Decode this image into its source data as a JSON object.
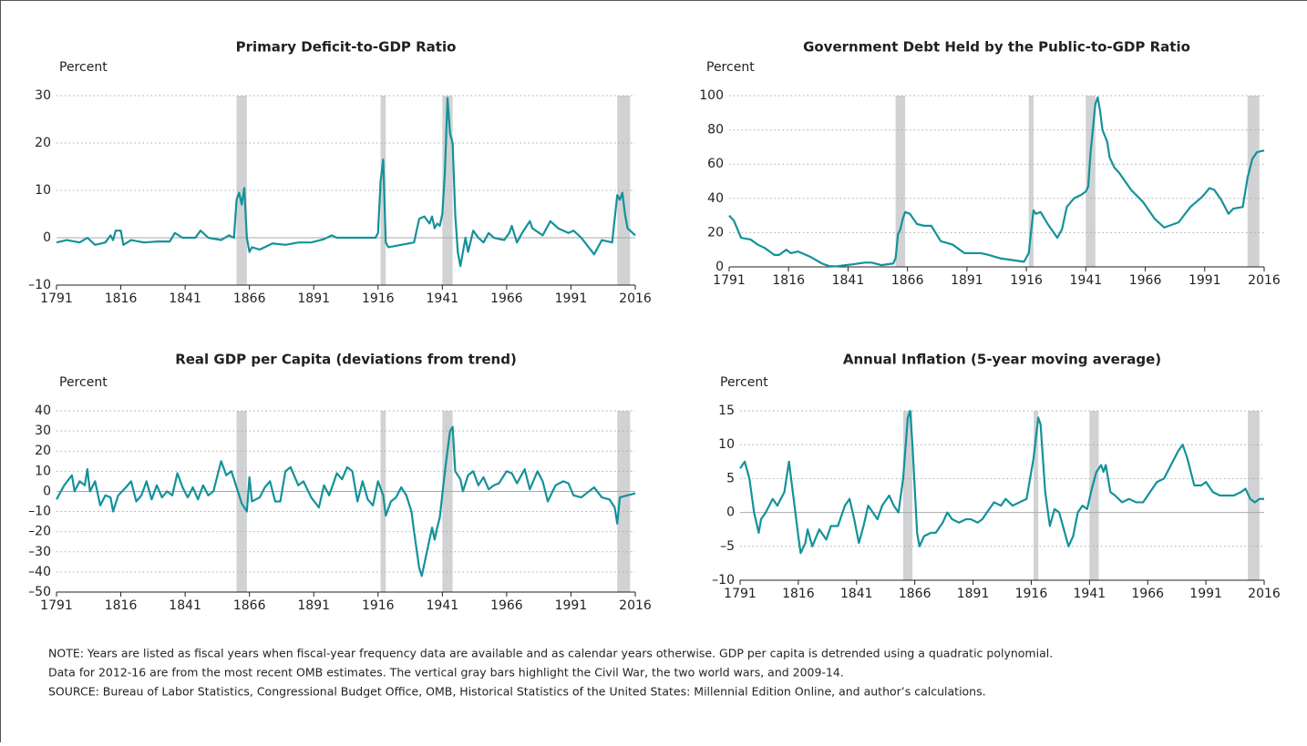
{
  "chart_data": [
    {
      "type": "line",
      "title": "Primary Deficit-to-GDP Ratio",
      "y_label": "Percent",
      "x": [
        1791,
        1795,
        1800,
        1803,
        1806,
        1810,
        1812,
        1813,
        1814,
        1816,
        1817,
        1820,
        1825,
        1830,
        1835,
        1837,
        1840,
        1845,
        1847,
        1850,
        1855,
        1858,
        1860,
        1861,
        1862,
        1863,
        1864,
        1865,
        1866,
        1867,
        1870,
        1875,
        1880,
        1885,
        1890,
        1895,
        1898,
        1900,
        1905,
        1910,
        1915,
        1916,
        1917,
        1918,
        1919,
        1920,
        1925,
        1930,
        1932,
        1934,
        1936,
        1937,
        1938,
        1939,
        1940,
        1941,
        1942,
        1943,
        1944,
        1945,
        1946,
        1947,
        1948,
        1950,
        1951,
        1953,
        1955,
        1957,
        1959,
        1961,
        1965,
        1967,
        1968,
        1970,
        1972,
        1975,
        1976,
        1980,
        1983,
        1986,
        1990,
        1992,
        1995,
        2000,
        2003,
        2007,
        2009,
        2010,
        2011,
        2012,
        2013,
        2015,
        2016
      ],
      "values": [
        -1,
        -0.5,
        -1,
        0,
        -1.5,
        -1,
        0.5,
        -0.5,
        1.5,
        1.5,
        -1.5,
        -0.5,
        -1,
        -0.8,
        -0.8,
        1,
        0,
        0,
        1.5,
        0,
        -0.5,
        0.5,
        0,
        8,
        9.5,
        7,
        10.5,
        0,
        -3,
        -2,
        -2.5,
        -1.2,
        -1.5,
        -1,
        -1,
        -0.3,
        0.5,
        0,
        0,
        0,
        0,
        1,
        12,
        16.5,
        -1,
        -2,
        -1.5,
        -1,
        4,
        4.5,
        3,
        4.5,
        2,
        3,
        2.5,
        5,
        14,
        29.5,
        22,
        20,
        5,
        -3,
        -6,
        0,
        -3,
        1.5,
        0,
        -1,
        1,
        0,
        -0.5,
        1,
        2.5,
        -1,
        1,
        3.5,
        2,
        0.5,
        3.5,
        2,
        1,
        1.5,
        0,
        -3.5,
        -0.5,
        -1,
        9,
        8,
        9.5,
        5,
        2,
        1,
        0.5
      ],
      "color": "#13929a",
      "shaded_ranges": [
        [
          1861,
          1865
        ],
        [
          1917,
          1919
        ],
        [
          1941,
          1945
        ],
        [
          2009,
          2014
        ]
      ],
      "xlim": [
        1791,
        2016
      ],
      "xticks": [
        1791,
        1816,
        1841,
        1866,
        1891,
        1916,
        1941,
        1966,
        1991,
        2016
      ],
      "ylim": [
        -10,
        30
      ],
      "yticks": [
        {
          "value": -10,
          "label": "–10"
        },
        0,
        10,
        20,
        30
      ],
      "grid": true
    },
    {
      "type": "line",
      "title": "Government Debt Held by the Public-to-GDP Ratio",
      "y_label": "Percent",
      "x": [
        1791,
        1793,
        1796,
        1800,
        1803,
        1806,
        1810,
        1812,
        1815,
        1817,
        1820,
        1825,
        1830,
        1833,
        1836,
        1840,
        1843,
        1848,
        1851,
        1855,
        1860,
        1861,
        1862,
        1863,
        1864,
        1865,
        1867,
        1870,
        1873,
        1876,
        1880,
        1885,
        1890,
        1894,
        1897,
        1900,
        1905,
        1910,
        1915,
        1917,
        1918,
        1919,
        1920,
        1922,
        1925,
        1929,
        1931,
        1933,
        1936,
        1939,
        1941,
        1942,
        1943,
        1945,
        1946,
        1947,
        1948,
        1950,
        1951,
        1953,
        1955,
        1960,
        1965,
        1970,
        1974,
        1980,
        1985,
        1990,
        1993,
        1995,
        1998,
        2001,
        2003,
        2007,
        2009,
        2011,
        2013,
        2016
      ],
      "values": [
        30,
        27,
        17,
        16,
        13,
        11,
        7,
        7,
        10,
        8,
        9,
        6,
        2,
        0.5,
        0.3,
        1,
        1.5,
        2.5,
        2.5,
        1,
        2,
        5,
        19,
        22,
        28,
        32,
        31,
        25,
        24,
        24,
        15,
        13,
        8,
        8,
        8,
        7,
        5,
        4,
        3,
        8,
        21,
        33,
        31,
        32,
        25,
        17,
        22,
        35,
        40,
        42,
        44,
        47,
        67,
        95,
        99,
        91,
        80,
        73,
        64,
        58,
        55,
        45,
        38,
        28,
        23,
        26,
        35,
        41,
        46,
        45,
        39,
        31,
        34,
        35,
        52,
        63,
        67,
        68
      ],
      "color": "#13929a",
      "shaded_ranges": [
        [
          1861,
          1865
        ],
        [
          1917,
          1919
        ],
        [
          1941,
          1945
        ],
        [
          2009,
          2014
        ]
      ],
      "xlim": [
        1791,
        2016
      ],
      "xticks": [
        1791,
        1816,
        1841,
        1866,
        1891,
        1916,
        1941,
        1966,
        1991,
        2016
      ],
      "ylim": [
        0,
        100
      ],
      "yticks": [
        0,
        20,
        40,
        60,
        80,
        100
      ],
      "grid": true
    },
    {
      "type": "line",
      "title": "Real GDP per Capita (deviations from trend)",
      "y_label": "Percent",
      "x": [
        1791,
        1794,
        1797,
        1798,
        1800,
        1802,
        1803,
        1804,
        1806,
        1808,
        1810,
        1812,
        1813,
        1815,
        1818,
        1820,
        1822,
        1824,
        1826,
        1828,
        1830,
        1832,
        1834,
        1836,
        1838,
        1840,
        1842,
        1844,
        1846,
        1848,
        1850,
        1852,
        1853,
        1855,
        1857,
        1859,
        1861,
        1863,
        1865,
        1866,
        1867,
        1870,
        1872,
        1874,
        1876,
        1878,
        1880,
        1882,
        1885,
        1887,
        1890,
        1893,
        1895,
        1897,
        1900,
        1902,
        1904,
        1906,
        1908,
        1910,
        1912,
        1914,
        1916,
        1918,
        1919,
        1921,
        1923,
        1925,
        1927,
        1929,
        1930,
        1932,
        1933,
        1935,
        1937,
        1938,
        1939,
        1940,
        1942,
        1944,
        1945,
        1946,
        1948,
        1949,
        1951,
        1953,
        1955,
        1957,
        1959,
        1961,
        1963,
        1966,
        1968,
        1970,
        1973,
        1975,
        1978,
        1980,
        1982,
        1985,
        1988,
        1990,
        1992,
        1995,
        1998,
        2000,
        2003,
        2006,
        2008,
        2009,
        2010,
        2013,
        2016
      ],
      "values": [
        -4,
        3,
        8,
        0,
        5,
        3,
        11,
        0,
        5,
        -7,
        -2,
        -3,
        -10,
        -2,
        2,
        5,
        -5,
        -2,
        5,
        -4,
        3,
        -3,
        0,
        -2,
        9,
        2,
        -3,
        2,
        -4,
        3,
        -2,
        0,
        5,
        15,
        8,
        10,
        2,
        -6,
        -10,
        7,
        -5,
        -3,
        2,
        5,
        -5,
        -5,
        10,
        12,
        3,
        5,
        -3,
        -8,
        3,
        -2,
        9,
        6,
        12,
        10,
        -5,
        5,
        -4,
        -7,
        5,
        -2,
        -12,
        -5,
        -3,
        2,
        -2,
        -10,
        -20,
        -38,
        -42,
        -30,
        -18,
        -24,
        -18,
        -13,
        10,
        30,
        32,
        10,
        6,
        0,
        8,
        10,
        3,
        7,
        1,
        3,
        4,
        10,
        9,
        4,
        11,
        1,
        10,
        5,
        -5,
        3,
        5,
        4,
        -2,
        -3,
        0,
        2,
        -3,
        -4,
        -8,
        -16,
        -3,
        -2,
        -1
      ],
      "color": "#13929a",
      "shaded_ranges": [
        [
          1861,
          1865
        ],
        [
          1917,
          1919
        ],
        [
          1941,
          1945
        ],
        [
          2009,
          2014
        ]
      ],
      "xlim": [
        1791,
        2016
      ],
      "xticks": [
        1791,
        1816,
        1841,
        1866,
        1891,
        1916,
        1941,
        1966,
        1991,
        2016
      ],
      "ylim": [
        -50,
        40
      ],
      "yticks": [
        {
          "value": -50,
          "label": "–50"
        },
        {
          "value": -40,
          "label": "–40"
        },
        {
          "value": -30,
          "label": "–30"
        },
        {
          "value": -20,
          "label": "–20"
        },
        {
          "value": -10,
          "label": "–10"
        },
        0,
        10,
        20,
        30,
        40
      ],
      "grid": true
    },
    {
      "type": "line",
      "title": "Annual Inflation (5-year moving average)",
      "y_label": "Percent",
      "x": [
        1791,
        1793,
        1795,
        1797,
        1799,
        1800,
        1802,
        1805,
        1807,
        1810,
        1812,
        1814,
        1816,
        1817,
        1819,
        1820,
        1822,
        1825,
        1828,
        1830,
        1833,
        1836,
        1838,
        1840,
        1842,
        1844,
        1846,
        1848,
        1850,
        1852,
        1855,
        1857,
        1859,
        1861,
        1863,
        1864,
        1865,
        1867,
        1868,
        1870,
        1873,
        1875,
        1878,
        1880,
        1882,
        1885,
        1888,
        1890,
        1893,
        1895,
        1898,
        1900,
        1903,
        1905,
        1908,
        1911,
        1914,
        1917,
        1919,
        1920,
        1922,
        1924,
        1926,
        1928,
        1930,
        1932,
        1934,
        1936,
        1938,
        1940,
        1942,
        1944,
        1946,
        1947,
        1948,
        1950,
        1952,
        1955,
        1958,
        1961,
        1964,
        1967,
        1970,
        1973,
        1976,
        1979,
        1981,
        1983,
        1986,
        1989,
        1991,
        1994,
        1997,
        2000,
        2003,
        2006,
        2008,
        2010,
        2012,
        2014,
        2016
      ],
      "values": [
        6.5,
        7.5,
        5,
        0,
        -3,
        -1,
        0,
        2,
        1,
        3,
        7.5,
        2,
        -3.5,
        -6,
        -4.5,
        -2.5,
        -5,
        -2.5,
        -4,
        -2,
        -2,
        1,
        2,
        -1,
        -4.5,
        -2,
        1,
        0,
        -1,
        1,
        2.5,
        1,
        0,
        5,
        14,
        15,
        10,
        -3,
        -5,
        -3.5,
        -3,
        -3,
        -1.5,
        0,
        -1,
        -1.5,
        -1,
        -1,
        -1.5,
        -1,
        0.5,
        1.5,
        1,
        2,
        1,
        1.5,
        2,
        8,
        14,
        13,
        3,
        -2,
        0.5,
        0,
        -2.5,
        -5,
        -3.5,
        0,
        1,
        0.5,
        3.5,
        6,
        7,
        6,
        7,
        3,
        2.5,
        1.5,
        2,
        1.5,
        1.5,
        3,
        4.5,
        5,
        7,
        9,
        10,
        8,
        4,
        4,
        4.5,
        3,
        2.5,
        2.5,
        2.5,
        3,
        3.5,
        2,
        1.5,
        2,
        2
      ],
      "color": "#13929a",
      "shaded_ranges": [
        [
          1861,
          1865
        ],
        [
          1917,
          1919
        ],
        [
          1941,
          1945
        ],
        [
          2009,
          2014
        ]
      ],
      "xlim": [
        1791,
        2016
      ],
      "xticks": [
        1791,
        1816,
        1841,
        1866,
        1891,
        1916,
        1941,
        1966,
        1991,
        2016
      ],
      "ylim": [
        -10,
        15
      ],
      "yticks": [
        {
          "value": -10,
          "label": "–10"
        },
        {
          "value": -5,
          "label": "–5"
        },
        0,
        5,
        10,
        15
      ],
      "grid": true
    }
  ],
  "note": [
    "NOTE: Years are listed as fiscal years when fiscal-year frequency data are available and as calendar years otherwise. GDP per capita is detrended using a quadratic polynomial.",
    "Data for 2012-16 are from the most recent OMB estimates. The vertical gray bars highlight the Civil War, the two world wars, and 2009-14."
  ],
  "source": "SOURCE: Bureau of Labor Statistics, Congressional Budget Office, OMB, Historical Statistics of the United States: Millennial Edition Online, and author’s calculations."
}
